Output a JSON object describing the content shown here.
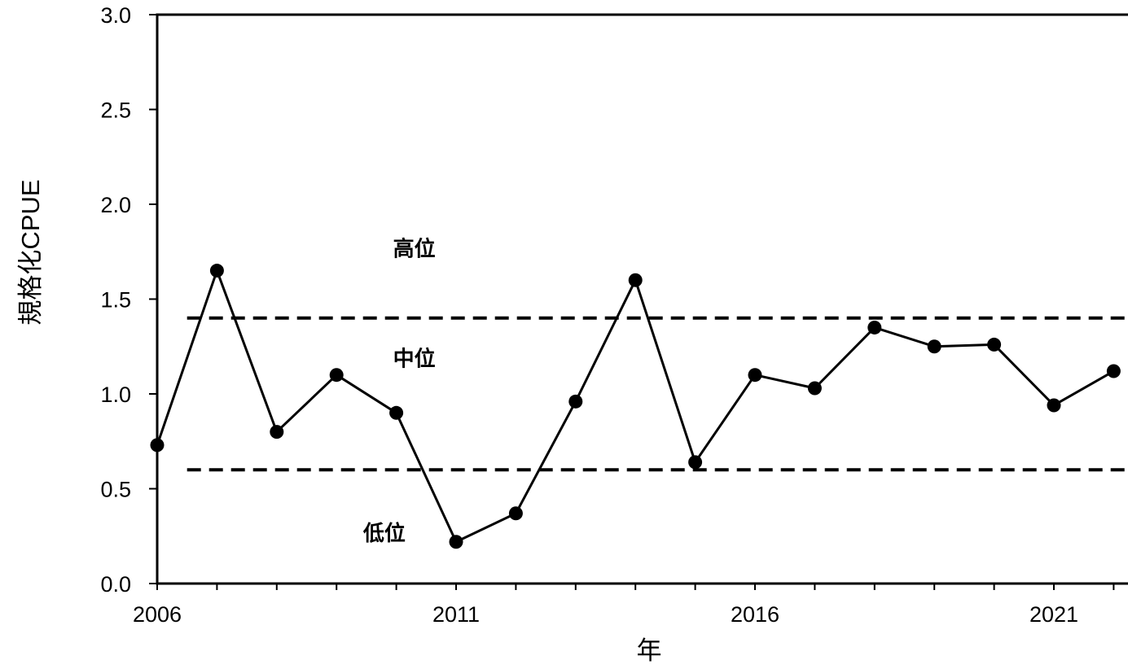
{
  "chart_data": {
    "type": "line",
    "title": "",
    "xlabel": "年",
    "ylabel": "規格化CPUE",
    "xlim": [
      2006,
      2022.3
    ],
    "ylim": [
      0,
      3.0
    ],
    "x_ticks": [
      2006,
      2011,
      2016,
      2021
    ],
    "x_tick_labels": [
      "2006",
      "2011",
      "2016",
      "2021"
    ],
    "y_ticks": [
      0,
      0.5,
      1.0,
      1.5,
      2.0,
      2.5,
      3.0
    ],
    "y_tick_labels": [
      "0.0",
      "0.5",
      "1.0",
      "1.5",
      "2.0",
      "2.5",
      "3.0"
    ],
    "grid": false,
    "series": [
      {
        "x": [
          2006,
          2007,
          2008,
          2009,
          2010,
          2011,
          2012,
          2013,
          2014,
          2015,
          2016,
          2017,
          2018,
          2019,
          2020,
          2021,
          2022
        ],
        "values": [
          0.73,
          1.65,
          0.8,
          1.1,
          0.9,
          0.22,
          0.37,
          0.96,
          1.6,
          0.64,
          1.1,
          1.03,
          1.35,
          1.25,
          1.26,
          0.94,
          1.12
        ],
        "color": "#000000"
      }
    ],
    "reference_lines": [
      {
        "y": 1.4,
        "style": "dashed",
        "x_start": 2006.5
      },
      {
        "y": 0.6,
        "style": "dashed",
        "x_start": 2006.5
      }
    ],
    "annotations": [
      {
        "text": "高位",
        "x": 2010.3,
        "y": 1.77
      },
      {
        "text": "中位",
        "x": 2010.3,
        "y": 1.19
      },
      {
        "text": "低位",
        "x": 2009.8,
        "y": 0.27
      }
    ]
  }
}
